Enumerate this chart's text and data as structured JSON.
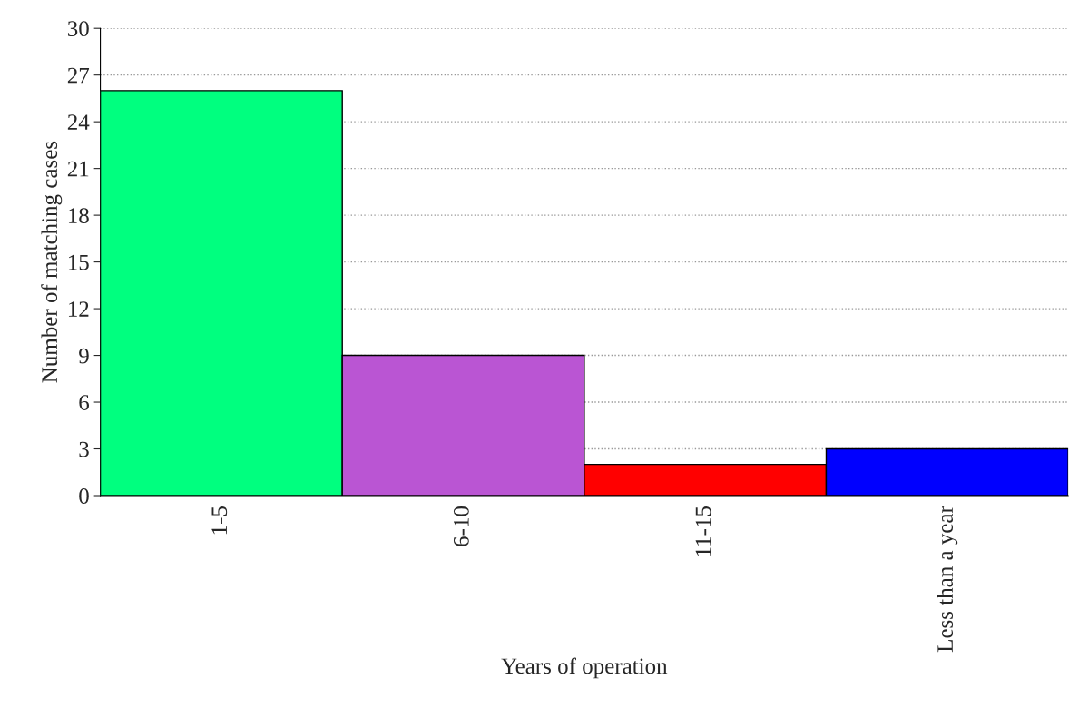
{
  "chart_data": {
    "type": "bar",
    "xlabel": "Years of operation",
    "ylabel": "Number of matching cases",
    "categories": [
      "1-5",
      "6-10",
      "11-15",
      "Less than a year"
    ],
    "values": [
      26,
      9,
      2,
      3
    ],
    "colors": [
      "#00ff7f",
      "#ba55d3",
      "#ff0000",
      "#0000ff"
    ],
    "ylim": [
      0,
      30
    ],
    "yticks": [
      0,
      3,
      6,
      9,
      12,
      15,
      18,
      21,
      24,
      27,
      30
    ],
    "grid": "y",
    "legend": false
  }
}
